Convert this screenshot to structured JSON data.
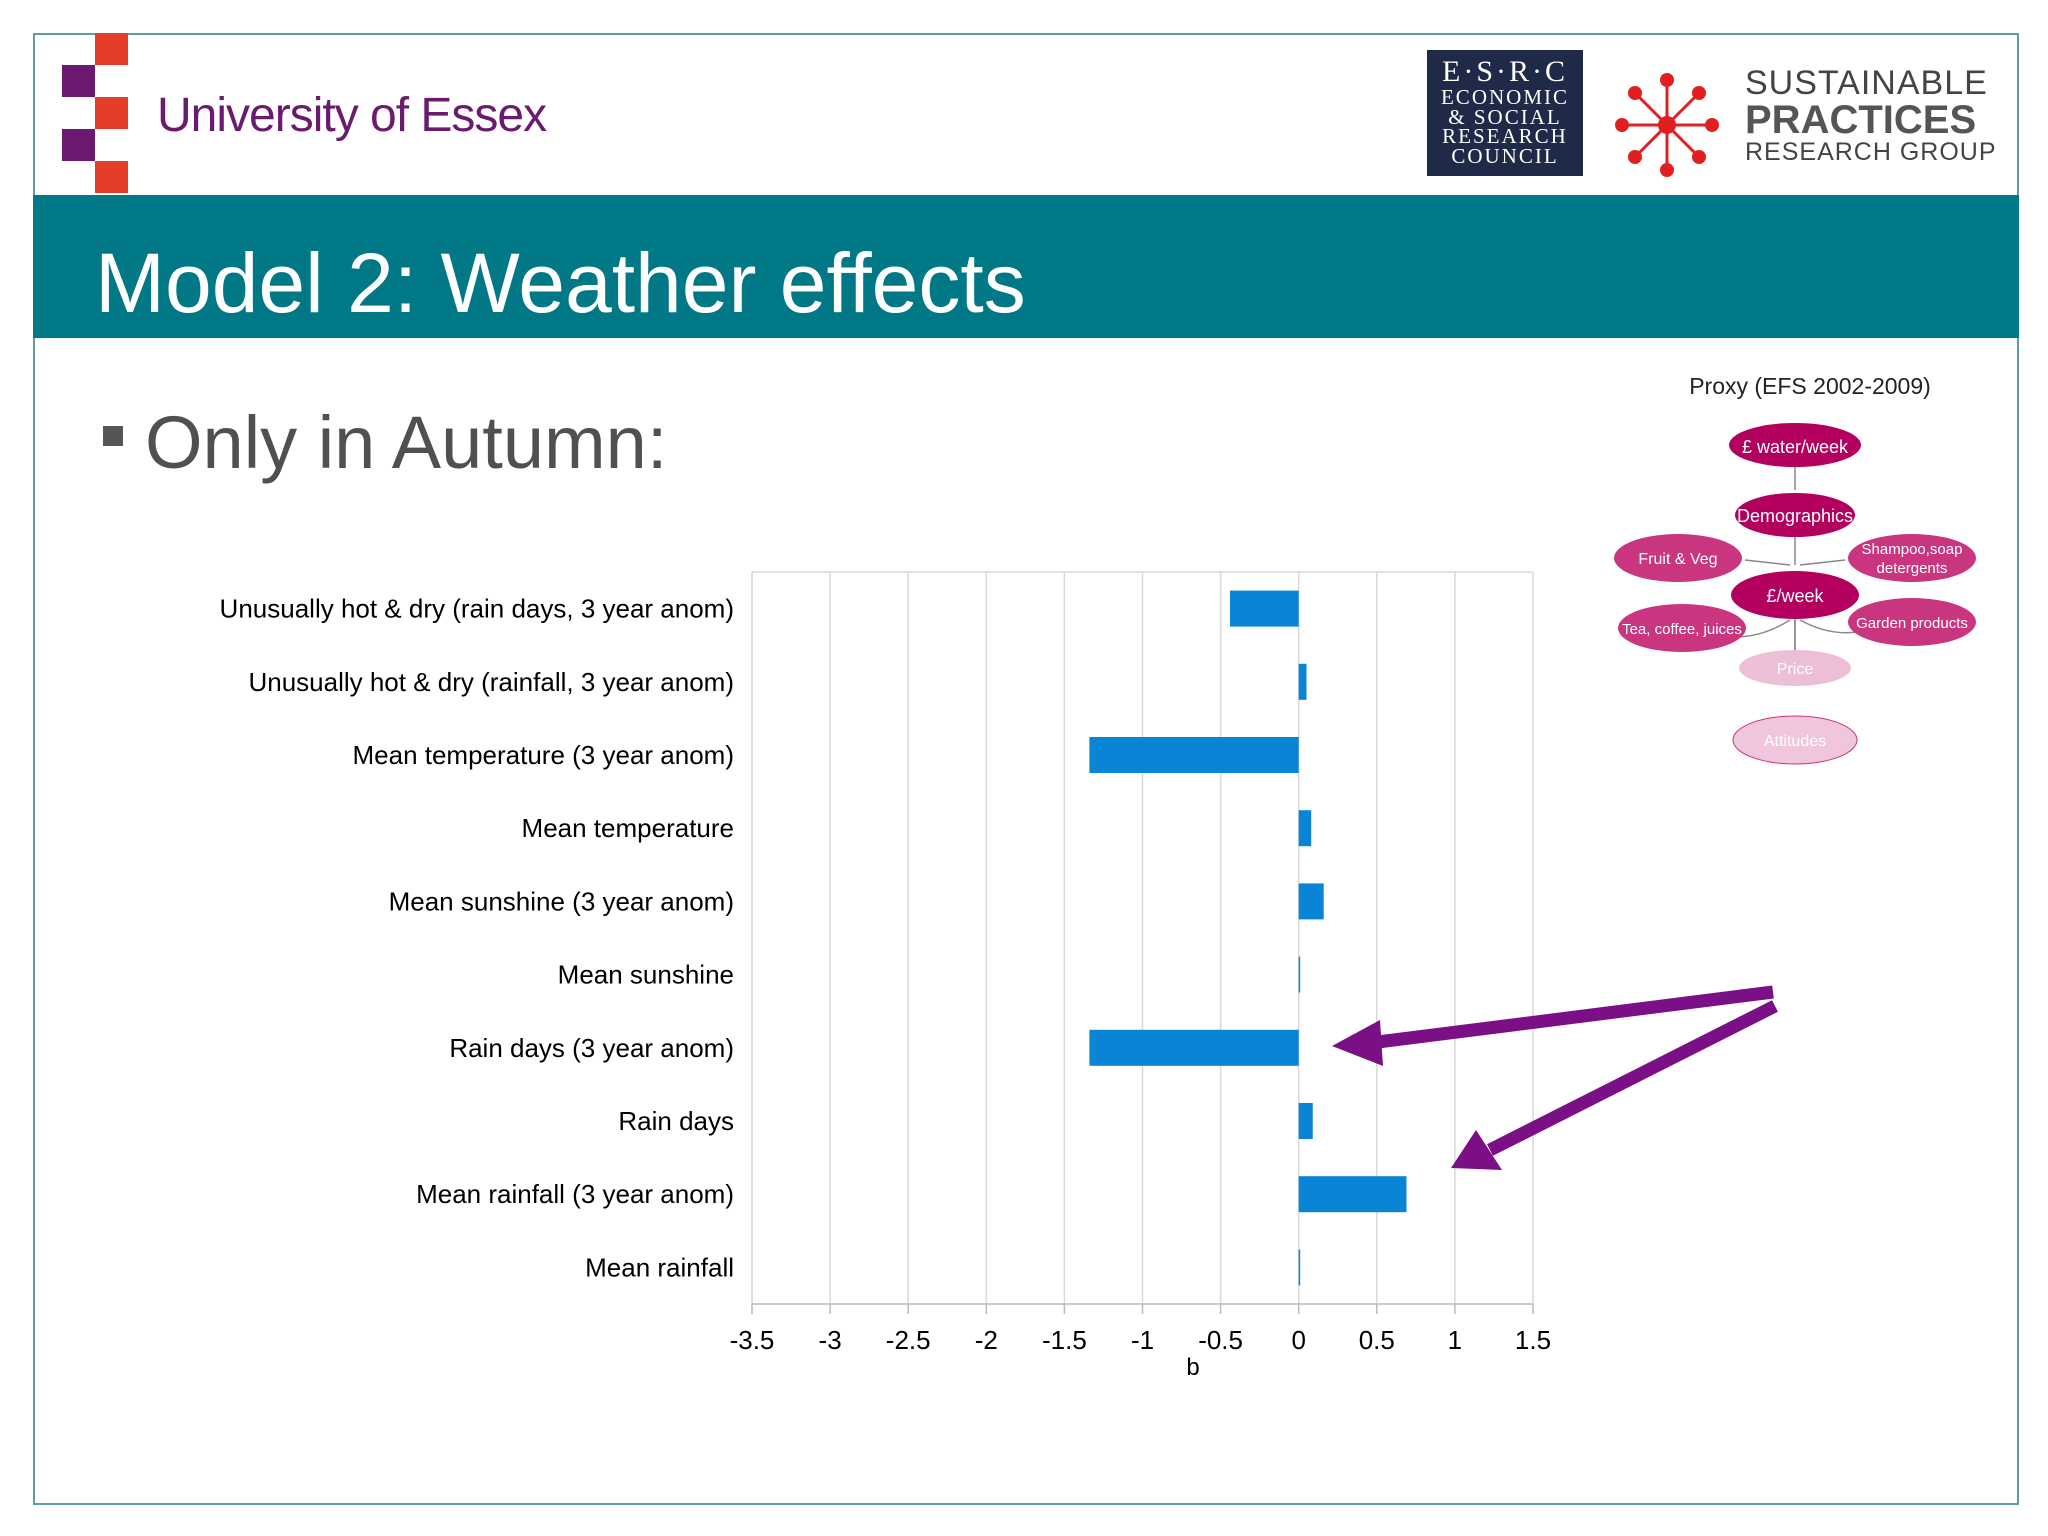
{
  "header": {
    "university": "University of Essex",
    "esrc_logo": [
      "E·S·R·C",
      "ECONOMIC",
      "& SOCIAL",
      "RESEARCH",
      "COUNCIL"
    ],
    "spr_logo": [
      "SUSTAINABLE",
      "PRACTICES",
      "RESEARCH GROUP"
    ]
  },
  "slide": {
    "title": "Model 2: Weather effects",
    "bullet": "Only in Autumn:"
  },
  "chart_data": {
    "type": "bar",
    "orientation": "horizontal",
    "categories": [
      "Unusually hot & dry (rain days, 3 year anom)",
      "Unusually hot & dry (rainfall, 3 year anom)",
      "Mean temperature (3 year anom)",
      "Mean temperature",
      "Mean sunshine (3 year anom)",
      "Mean sunshine",
      "Rain days (3 year anom)",
      "Rain days",
      "Mean rainfall (3 year anom)",
      "Mean rainfall"
    ],
    "values": [
      -0.44,
      0.05,
      -1.34,
      0.08,
      0.16,
      0.0,
      -1.34,
      0.09,
      0.69,
      0.0
    ],
    "xlabel": "b",
    "xlim": [
      -3.5,
      1.5
    ],
    "xticks": [
      "-3.5",
      "-3",
      "-2.5",
      "-2",
      "-1.5",
      "-1",
      "-0.5",
      "0",
      "0.5",
      "1",
      "1.5"
    ],
    "grid": "vertical",
    "bar_color": "#0a84d4"
  },
  "proxy_diagram": {
    "title": "Proxy (EFS 2002-2009)",
    "nodes": {
      "water": "£ water/week",
      "demographics": "Demographics",
      "fruit": "Fruit & Veg",
      "shampoo": [
        "Shampoo,soap",
        "detergents"
      ],
      "week": "£/week",
      "tea": "Tea, coffee, juices",
      "garden": "Garden products",
      "price": "Price",
      "attitudes": "Attitudes"
    }
  },
  "annotation_color": "#7a0f86"
}
